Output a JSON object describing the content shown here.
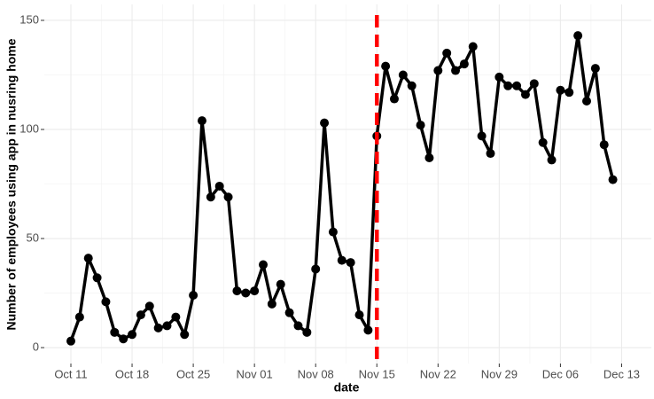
{
  "chart_data": {
    "type": "line",
    "x_label": "date",
    "y_label": "Number of employees using app in nusring home",
    "categories": [
      "Oct 11",
      "Oct 12",
      "Oct 13",
      "Oct 14",
      "Oct 15",
      "Oct 16",
      "Oct 17",
      "Oct 18",
      "Oct 19",
      "Oct 20",
      "Oct 21",
      "Oct 22",
      "Oct 23",
      "Oct 24",
      "Oct 25",
      "Oct 26",
      "Oct 27",
      "Oct 28",
      "Oct 29",
      "Oct 30",
      "Oct 31",
      "Nov 01",
      "Nov 02",
      "Nov 03",
      "Nov 04",
      "Nov 05",
      "Nov 06",
      "Nov 07",
      "Nov 08",
      "Nov 09",
      "Nov 10",
      "Nov 11",
      "Nov 12",
      "Nov 13",
      "Nov 14",
      "Nov 15",
      "Nov 16",
      "Nov 17",
      "Nov 18",
      "Nov 19",
      "Nov 20",
      "Nov 21",
      "Nov 22",
      "Nov 23",
      "Nov 24",
      "Nov 25",
      "Nov 26",
      "Nov 27",
      "Nov 28",
      "Nov 29",
      "Nov 30",
      "Dec 01",
      "Dec 02",
      "Dec 03",
      "Dec 04",
      "Dec 05",
      "Dec 06",
      "Dec 07",
      "Dec 08",
      "Dec 09",
      "Dec 10",
      "Dec 11",
      "Dec 12"
    ],
    "series": [
      {
        "name": "employees",
        "color": "#000000",
        "values": [
          3,
          14,
          41,
          32,
          21,
          7,
          4,
          6,
          15,
          19,
          9,
          10,
          14,
          6,
          24,
          104,
          69,
          74,
          69,
          26,
          25,
          26,
          38,
          20,
          29,
          16,
          10,
          7,
          36,
          103,
          53,
          40,
          39,
          15,
          8,
          97,
          129,
          114,
          125,
          120,
          102,
          87,
          127,
          135,
          127,
          130,
          138,
          97,
          89,
          124,
          120,
          120,
          116,
          121,
          94,
          86,
          118,
          117,
          143,
          113,
          128,
          93,
          77
        ]
      }
    ],
    "xlim": [
      -3.04,
      66.4
    ],
    "xticks": [
      {
        "value": 0,
        "label": "Oct 11"
      },
      {
        "value": 7,
        "label": "Oct 18"
      },
      {
        "value": 14,
        "label": "Oct 25"
      },
      {
        "value": 21,
        "label": "Nov 01"
      },
      {
        "value": 28,
        "label": "Nov 08"
      },
      {
        "value": 35,
        "label": "Nov 15"
      },
      {
        "value": 42,
        "label": "Nov 22"
      },
      {
        "value": 49,
        "label": "Nov 29"
      },
      {
        "value": 56,
        "label": "Dec 06"
      },
      {
        "value": 63,
        "label": "Dec 13"
      }
    ],
    "ylim": [
      -7.3,
      157.3
    ],
    "yticks": [
      0,
      50,
      100,
      150
    ],
    "grid": true,
    "vline": {
      "x": 35,
      "color": "#ff0000"
    }
  }
}
